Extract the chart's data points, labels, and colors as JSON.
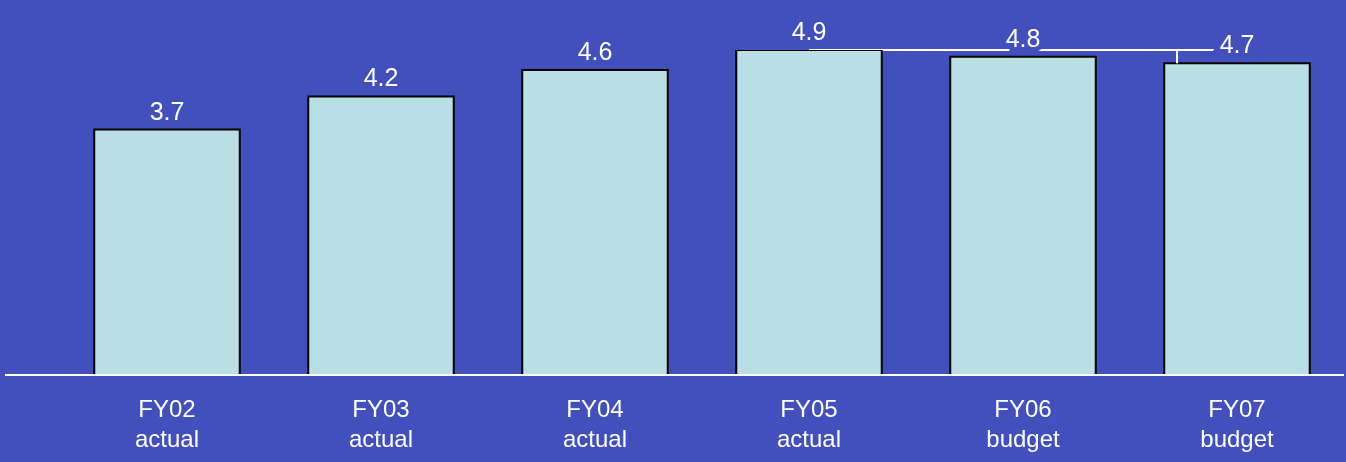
{
  "chart_data": {
    "type": "bar",
    "categories": [
      "FY02 actual",
      "FY03 actual",
      "FY04 actual",
      "FY05 actual",
      "FY06 budget",
      "FY07 budget"
    ],
    "values": [
      3.7,
      4.2,
      4.6,
      4.9,
      4.8,
      4.7
    ],
    "color": "#b8dfe3",
    "tick_labels": "x",
    "data_labels": true,
    "grid": false
  }
}
